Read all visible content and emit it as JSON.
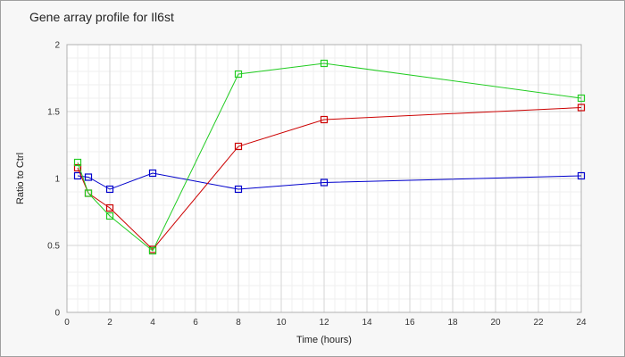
{
  "chart_data": {
    "type": "line",
    "title": "Gene array profile for Il6st",
    "xlabel": "Time (hours)",
    "ylabel": "Ratio to Ctrl",
    "xlim": [
      0,
      24
    ],
    "ylim": [
      0,
      2
    ],
    "x_ticks": [
      "0",
      "2",
      "4",
      "6",
      "8",
      "10",
      "12",
      "14",
      "16",
      "18",
      "20",
      "22",
      "24"
    ],
    "y_ticks": [
      "0",
      "0.5",
      "1",
      "1.5",
      "2"
    ],
    "grid": true,
    "marker": "open-square",
    "series": [
      {
        "color": "#0000cc",
        "points": [
          [
            0.5,
            1.02
          ],
          [
            1,
            1.01
          ],
          [
            2,
            0.92
          ],
          [
            4,
            1.04
          ],
          [
            8,
            0.92
          ],
          [
            12,
            0.97
          ],
          [
            24,
            1.02
          ]
        ]
      },
      {
        "color": "#cc0000",
        "points": [
          [
            0.5,
            1.08
          ],
          [
            1,
            0.89
          ],
          [
            2,
            0.78
          ],
          [
            4,
            0.47
          ],
          [
            8,
            1.24
          ],
          [
            12,
            1.44
          ],
          [
            24,
            1.53
          ]
        ]
      },
      {
        "color": "#22cc22",
        "points": [
          [
            0.5,
            1.12
          ],
          [
            1,
            0.89
          ],
          [
            2,
            0.72
          ],
          [
            4,
            0.46
          ],
          [
            8,
            1.78
          ],
          [
            12,
            1.86
          ],
          [
            24,
            1.6
          ]
        ]
      }
    ]
  }
}
